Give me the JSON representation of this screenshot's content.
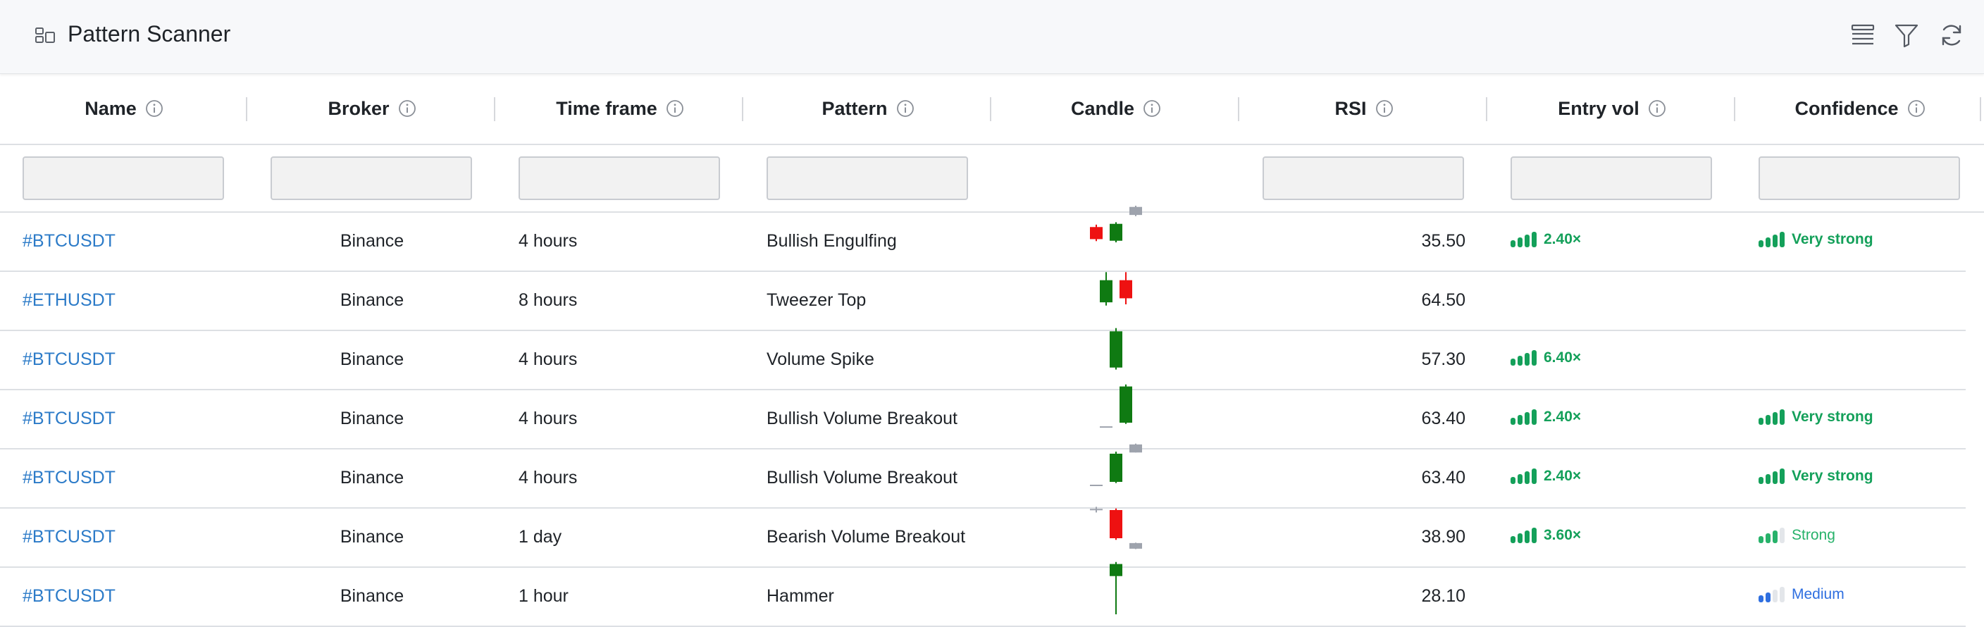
{
  "header": {
    "title": "Pattern Scanner",
    "icons": [
      "layout-icon",
      "list-icon",
      "filter-icon",
      "refresh-icon"
    ]
  },
  "columns": [
    {
      "label": "Name"
    },
    {
      "label": "Broker"
    },
    {
      "label": "Time frame"
    },
    {
      "label": "Pattern"
    },
    {
      "label": "Candle"
    },
    {
      "label": "RSI"
    },
    {
      "label": "Entry vol"
    },
    {
      "label": "Confidence"
    }
  ],
  "colors": {
    "link": "#2c7bc8",
    "bull": "#0f7a12",
    "bear": "#ee1111",
    "neutral": "#9ea3ad",
    "green_strong": "#14a05a",
    "green_medium": "#27b26a",
    "blue_medium": "#2f6fe0"
  },
  "rows": [
    {
      "name": "#BTCUSDT",
      "broker": "Binance",
      "timeframe": "4 hours",
      "pattern": "Bullish Engulfing",
      "rsi": "35.50",
      "entry_vol": {
        "label": "2.40×",
        "level": 4
      },
      "confidence": {
        "label": "Very strong",
        "level": 4
      },
      "candles": [
        {
          "dir": "bear",
          "open": 7,
          "close": 4,
          "high": 7.6,
          "low": 3.5
        },
        {
          "dir": "bull",
          "open": 3.6,
          "close": 7.8,
          "high": 8.2,
          "low": 3.2
        },
        {
          "dir": "neutral",
          "open": 10,
          "close": 12,
          "high": 12.3,
          "low": 9.7
        }
      ]
    },
    {
      "name": "#ETHUSDT",
      "broker": "Binance",
      "timeframe": "8 hours",
      "pattern": "Tweezer Top",
      "rsi": "64.50",
      "entry_vol": null,
      "confidence": null,
      "candles": [
        {
          "dir": "bull",
          "open": 3,
          "close": 8.5,
          "high": 10.5,
          "low": 2.2
        },
        {
          "dir": "bear",
          "open": 8.5,
          "close": 4,
          "high": 10.5,
          "low": 2.5
        }
      ]
    },
    {
      "name": "#BTCUSDT",
      "broker": "Binance",
      "timeframe": "4 hours",
      "pattern": "Volume Spike",
      "rsi": "57.30",
      "entry_vol": {
        "label": "6.40×",
        "level": 4
      },
      "confidence": null,
      "candles": [
        {
          "dir": "bull",
          "open": 1.5,
          "close": 10.5,
          "high": 11.3,
          "low": 1
        }
      ]
    },
    {
      "name": "#BTCUSDT",
      "broker": "Binance",
      "timeframe": "4 hours",
      "pattern": "Bullish Volume Breakout",
      "rsi": "63.40",
      "entry_vol": {
        "label": "2.40×",
        "level": 4
      },
      "confidence": {
        "label": "Very strong",
        "level": 4
      },
      "candles": [
        {
          "dir": "neutral",
          "open": 1.3,
          "close": 1.6,
          "high": 1.5,
          "low": 1.4
        },
        {
          "dir": "bull",
          "open": 2.5,
          "close": 11.5,
          "high": 12,
          "low": 2.2
        }
      ]
    },
    {
      "name": "#BTCUSDT",
      "broker": "Binance",
      "timeframe": "4 hours",
      "pattern": "Bullish Volume Breakout",
      "rsi": "63.40",
      "entry_vol": {
        "label": "2.40×",
        "level": 4
      },
      "confidence": {
        "label": "Very strong",
        "level": 4
      },
      "candles": [
        {
          "dir": "neutral",
          "open": 1.5,
          "close": 1.8,
          "high": 1.7,
          "low": 1.6
        },
        {
          "dir": "bull",
          "open": 2.5,
          "close": 9.5,
          "high": 10,
          "low": 2.2
        },
        {
          "dir": "neutral",
          "open": 9.8,
          "close": 11.8,
          "high": 12,
          "low": 9.8
        }
      ]
    },
    {
      "name": "#BTCUSDT",
      "broker": "Binance",
      "timeframe": "1 day",
      "pattern": "Bearish Volume Breakout",
      "rsi": "38.90",
      "entry_vol": {
        "label": "3.60×",
        "level": 4
      },
      "confidence": {
        "label": "Strong",
        "level": 3
      },
      "candles": [
        {
          "dir": "neutral",
          "open": 10.2,
          "close": 10.5,
          "high": 11,
          "low": 9.6
        },
        {
          "dir": "bear",
          "open": 10.2,
          "close": 3.2,
          "high": 10.6,
          "low": 2.8
        },
        {
          "dir": "neutral",
          "open": 0.6,
          "close": 2.0,
          "high": 2.1,
          "low": 0.5
        }
      ]
    },
    {
      "name": "#BTCUSDT",
      "broker": "Binance",
      "timeframe": "1 hour",
      "pattern": "Hammer",
      "rsi": "28.10",
      "entry_vol": null,
      "confidence": {
        "label": "Medium",
        "level": 2
      },
      "candles": [
        {
          "dir": "bull",
          "open": 8.5,
          "close": 11.5,
          "high": 12,
          "low": -1
        }
      ]
    }
  ]
}
